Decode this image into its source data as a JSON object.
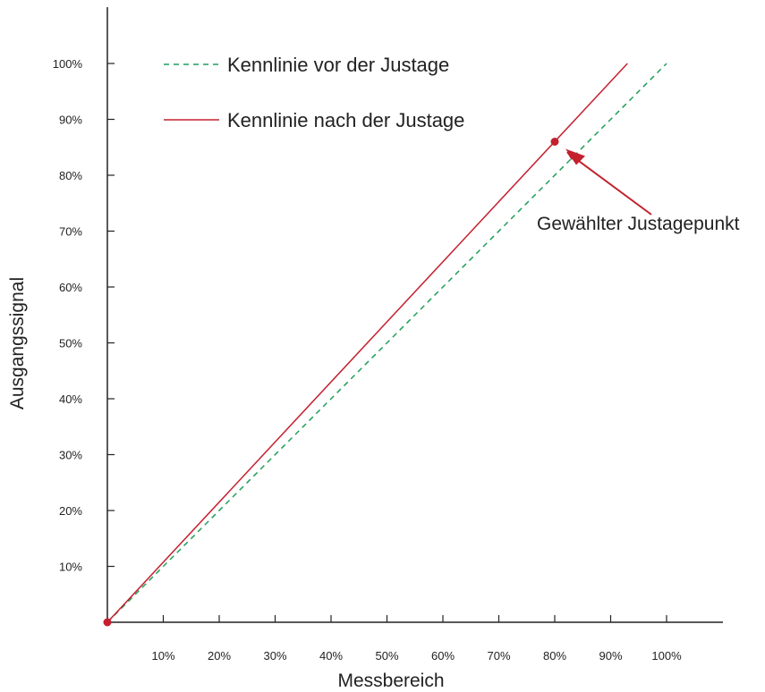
{
  "chart_data": {
    "type": "line",
    "title": "",
    "xlabel": "Messbereich",
    "ylabel": "Ausgangssignal",
    "xlim": [
      0,
      110
    ],
    "ylim": [
      0,
      110
    ],
    "x_ticks": [
      10,
      20,
      30,
      40,
      50,
      60,
      70,
      80,
      90,
      100
    ],
    "y_ticks": [
      10,
      20,
      30,
      40,
      50,
      60,
      70,
      80,
      90,
      100
    ],
    "x_tick_labels": [
      "10%",
      "20%",
      "30%",
      "40%",
      "50%",
      "60%",
      "70%",
      "80%",
      "90%",
      "100%"
    ],
    "y_tick_labels": [
      "10%",
      "20%",
      "30%",
      "40%",
      "50%",
      "60%",
      "70%",
      "80%",
      "90%",
      "100%"
    ],
    "grid": false,
    "legend_position": "top-left",
    "series": [
      {
        "name": "Kennlinie vor der Justage",
        "style": "dashed",
        "color": "#1f9e5a",
        "x": [
          0,
          100
        ],
        "y": [
          0,
          100
        ]
      },
      {
        "name": "Kennlinie nach der Justage",
        "style": "solid",
        "color": "#c4202e",
        "x": [
          0,
          93
        ],
        "y": [
          0,
          100
        ]
      }
    ],
    "points": [
      {
        "x": 0,
        "y": 0,
        "color": "#c4202e"
      },
      {
        "x": 80,
        "y": 86,
        "color": "#c4202e"
      }
    ],
    "annotations": [
      {
        "text": "Gewählter Justagepunkt",
        "target_x": 80,
        "target_y": 86
      }
    ]
  }
}
